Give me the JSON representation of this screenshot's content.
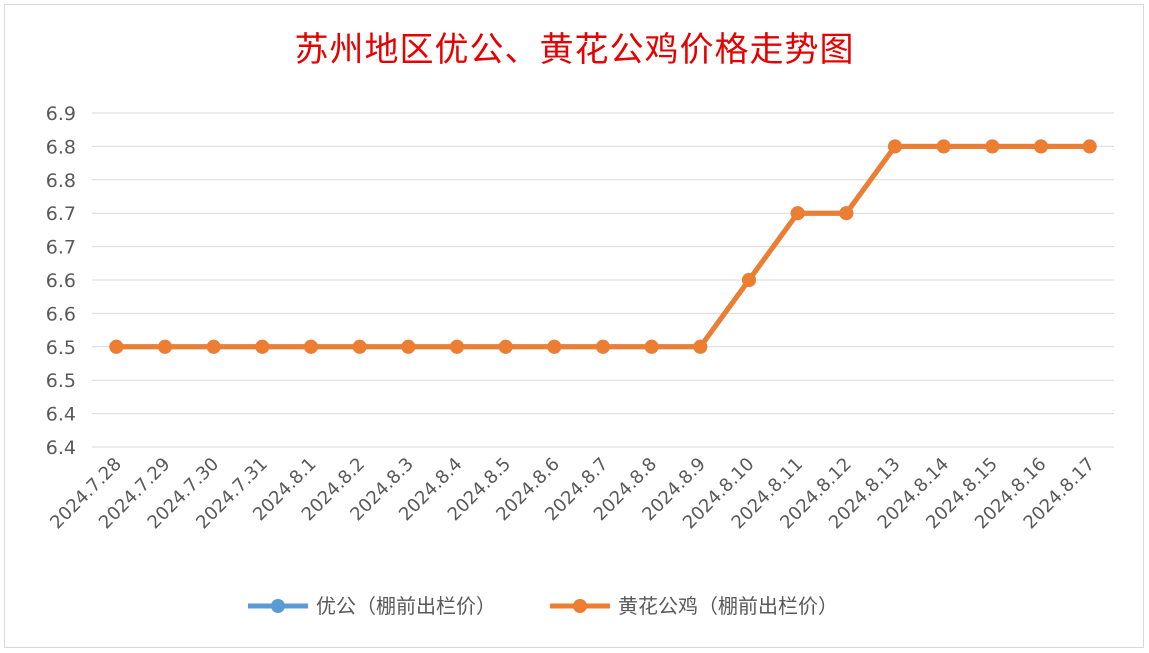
{
  "chart_data": {
    "type": "line",
    "title": "苏州地区优公、黄花公鸡价格走势图",
    "categories": [
      "2024.7.28",
      "2024.7.29",
      "2024.7.30",
      "2024.7.31",
      "2024.8.1",
      "2024.8.2",
      "2024.8.3",
      "2024.8.4",
      "2024.8.5",
      "2024.8.6",
      "2024.8.7",
      "2024.8.8",
      "2024.8.9",
      "2024.8.10",
      "2024.8.11",
      "2024.8.12",
      "2024.8.13",
      "2024.8.14",
      "2024.8.15",
      "2024.8.16",
      "2024.8.17"
    ],
    "y_tick_labels": [
      "6.9",
      "6.8",
      "6.8",
      "6.7",
      "6.7",
      "6.6",
      "6.6",
      "6.5",
      "6.5",
      "6.4",
      "6.4"
    ],
    "ylim": [
      6.35,
      6.85
    ],
    "grid": true,
    "legend_position": "bottom",
    "series": [
      {
        "name": "优公（棚前出栏价）",
        "color": "#5b9bd5",
        "values": [
          6.5,
          6.5,
          6.5,
          6.5,
          6.5,
          6.5,
          6.5,
          6.5,
          6.5,
          6.5,
          6.5,
          6.5,
          6.5,
          6.6,
          6.7,
          6.7,
          6.8,
          6.8,
          6.8,
          6.8,
          6.8
        ]
      },
      {
        "name": "黄花公鸡（棚前出栏价）",
        "color": "#ed7d31",
        "values": [
          6.5,
          6.5,
          6.5,
          6.5,
          6.5,
          6.5,
          6.5,
          6.5,
          6.5,
          6.5,
          6.5,
          6.5,
          6.5,
          6.6,
          6.7,
          6.7,
          6.8,
          6.8,
          6.8,
          6.8,
          6.8
        ]
      }
    ]
  }
}
